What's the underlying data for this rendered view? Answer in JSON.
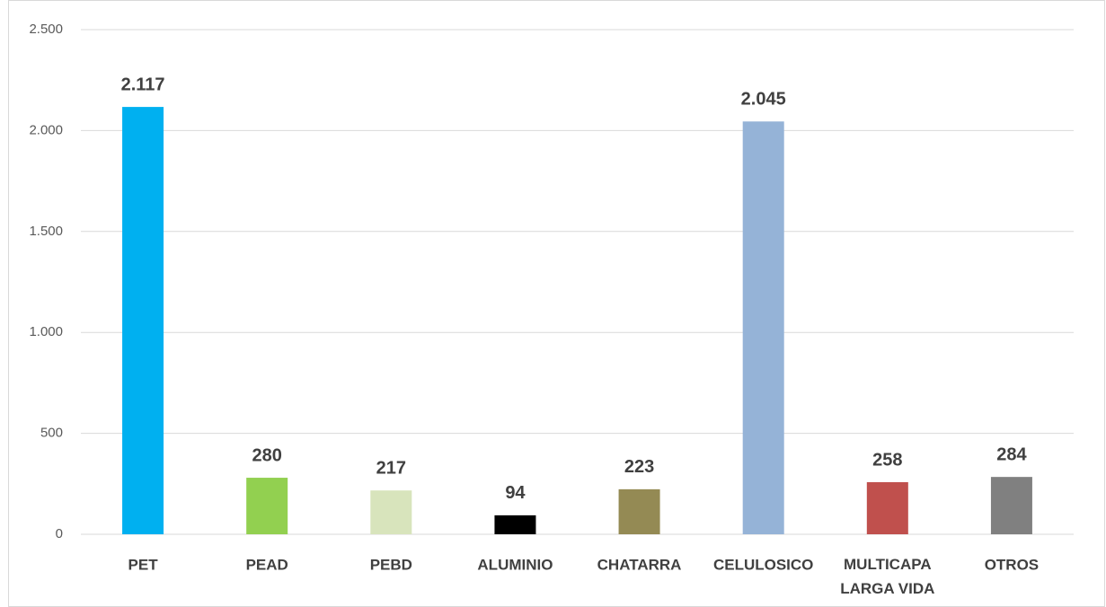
{
  "chart_data": {
    "type": "bar",
    "categories": [
      "PET",
      "PEAD",
      "PEBD",
      "ALUMINIO",
      "CHATARRA",
      "CELULOSICO",
      "MULTICAPA LARGA VIDA",
      "OTROS"
    ],
    "values": [
      2117,
      280,
      217,
      94,
      223,
      2045,
      258,
      284
    ],
    "value_labels": [
      "2.117",
      "280",
      "217",
      "94",
      "223",
      "2.045",
      "258",
      "284"
    ],
    "colors": [
      "#00b0f0",
      "#92d050",
      "#d8e4bc",
      "#000000",
      "#948a54",
      "#95b3d7",
      "#c0504d",
      "#808080"
    ],
    "ylim": [
      0,
      2500
    ],
    "yticks": [
      0,
      500,
      {
        "value": 1000,
        "label": "1.000"
      },
      {
        "value": 1500,
        "label": "1.500"
      },
      {
        "value": 2000,
        "label": "2.000"
      },
      {
        "value": 2500,
        "label": "2.500"
      }
    ],
    "grid": true
  }
}
